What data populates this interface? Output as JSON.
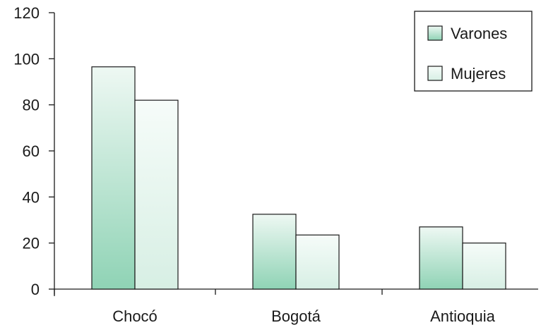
{
  "chart_data": {
    "type": "bar",
    "title": "",
    "xlabel": "",
    "ylabel": "",
    "categories": [
      "Chocó",
      "Bogotá",
      "Antioquia"
    ],
    "series": [
      {
        "name": "Varones",
        "values": [
          96.5,
          32.5,
          27
        ]
      },
      {
        "name": "Mujeres",
        "values": [
          82,
          23.5,
          20
        ]
      }
    ],
    "ylim": [
      0,
      120
    ],
    "yticks": [
      "0",
      "20",
      "40",
      "60",
      "80",
      "100",
      "120"
    ],
    "grid": false,
    "legend_position": "top-right",
    "colors": {
      "varones_bottom": "#8fd3b5",
      "varones_top": "#eef8f3",
      "mujeres_bottom": "#d7efe4",
      "mujeres_top": "#f6fcf9",
      "bar_stroke": "#1a1a1a",
      "axis": "#1a1a1a"
    }
  }
}
